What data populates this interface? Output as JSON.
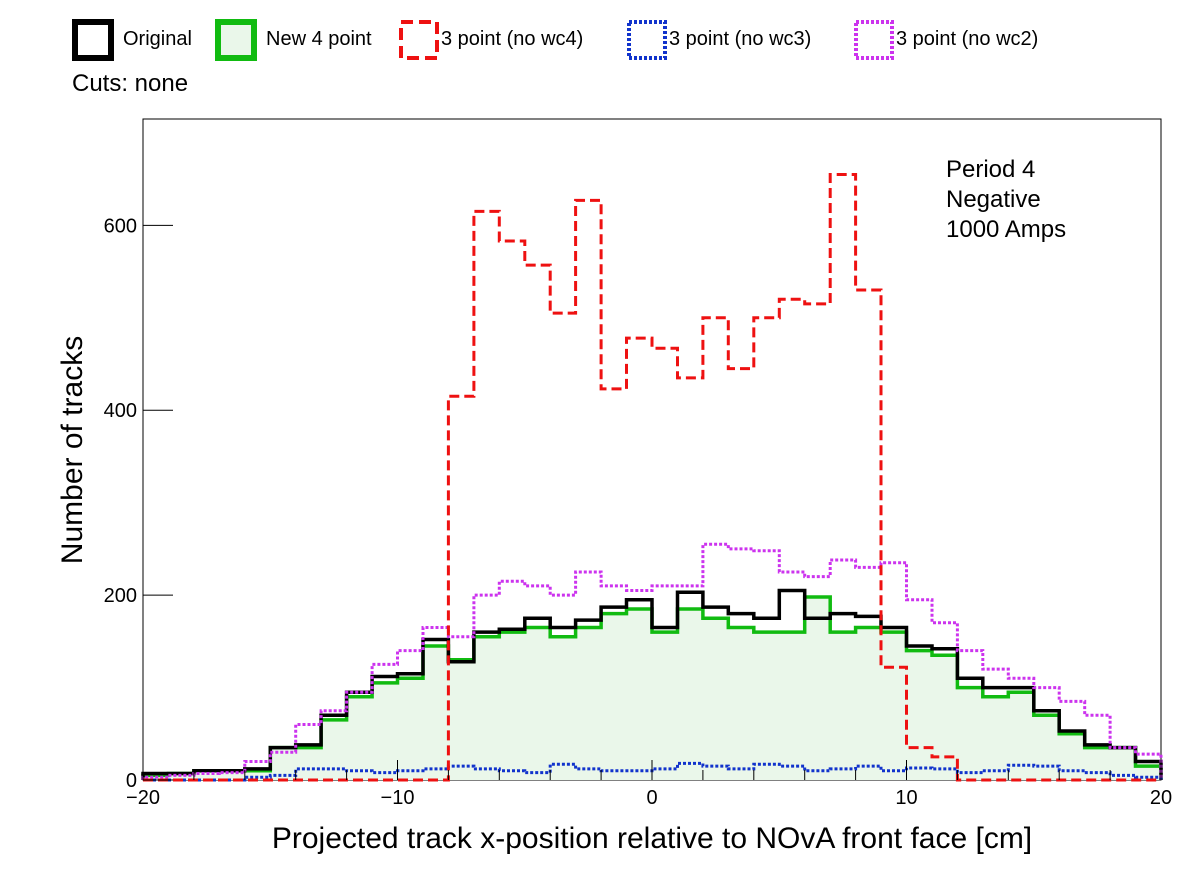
{
  "legend_items": [
    {
      "label": "Original",
      "color": "#000000",
      "style": "solid-thick",
      "fill": "none"
    },
    {
      "label": "New 4 point",
      "color": "#11bb11",
      "style": "solid-thick",
      "fill": "#eaf7ea"
    },
    {
      "label": "3 point (no wc4)",
      "color": "#ee1111",
      "style": "dashed",
      "fill": "none"
    },
    {
      "label": "3 point (no wc3)",
      "color": "#1133cc",
      "style": "dotted",
      "fill": "none"
    },
    {
      "label": "3 point (no wc2)",
      "color": "#cc33ee",
      "style": "dotted",
      "fill": "none"
    }
  ],
  "cuts_text": "Cuts: none",
  "annotation_lines": [
    "Period 4",
    "Negative",
    "1000 Amps"
  ],
  "chart_data": {
    "type": "histogram",
    "xlabel": "Projected track x-position relative to NOvA front face [cm]",
    "ylabel": "Number of tracks",
    "xlim": [
      -20,
      20
    ],
    "ylim": [
      0,
      715
    ],
    "x_ticks": [
      -20,
      -10,
      0,
      10,
      20
    ],
    "x_tick_labels": [
      "−20",
      "−10",
      "0",
      "10",
      "20"
    ],
    "y_ticks": [
      0,
      200,
      400,
      600
    ],
    "y_tick_labels": [
      "0",
      "200",
      "400",
      "600"
    ],
    "bin_edges": [
      -20,
      -19,
      -18,
      -17,
      -16,
      -15,
      -14,
      -13,
      -12,
      -11,
      -10,
      -9,
      -8,
      -7,
      -6,
      -5,
      -4,
      -3,
      -2,
      -1,
      0,
      1,
      2,
      3,
      4,
      5,
      6,
      7,
      8,
      9,
      10,
      11,
      12,
      13,
      14,
      15,
      16,
      17,
      18,
      19,
      20
    ],
    "series": [
      {
        "name": "New 4 point",
        "color": "#11bb11",
        "style": "solid",
        "fill": "#eaf7ea",
        "values": [
          5,
          7,
          10,
          10,
          10,
          35,
          35,
          65,
          90,
          105,
          110,
          145,
          130,
          155,
          160,
          165,
          155,
          165,
          180,
          185,
          160,
          185,
          175,
          165,
          160,
          160,
          198,
          160,
          165,
          160,
          140,
          135,
          100,
          90,
          95,
          70,
          50,
          35,
          35,
          15
        ]
      },
      {
        "name": "Original",
        "color": "#000000",
        "style": "solid",
        "fill": "none",
        "values": [
          7,
          7,
          10,
          10,
          12,
          35,
          38,
          70,
          95,
          112,
          115,
          152,
          128,
          160,
          163,
          175,
          165,
          173,
          187,
          195,
          165,
          203,
          187,
          180,
          175,
          205,
          175,
          180,
          177,
          165,
          145,
          142,
          110,
          100,
          100,
          75,
          53,
          38,
          35,
          20
        ]
      },
      {
        "name": "3 point (no wc4)",
        "color": "#ee1111",
        "style": "dashed",
        "fill": "none",
        "values": [
          0,
          0,
          0,
          0,
          0,
          0,
          0,
          0,
          0,
          0,
          0,
          0,
          415,
          615,
          583,
          557,
          505,
          627,
          423,
          478,
          467,
          435,
          500,
          445,
          500,
          520,
          515,
          655,
          530,
          122,
          35,
          25,
          0,
          0,
          0,
          0,
          0,
          0,
          0,
          0
        ]
      },
      {
        "name": "3 point (no wc3)",
        "color": "#1133cc",
        "style": "dotted",
        "fill": "none",
        "values": [
          0,
          0,
          0,
          0,
          3,
          5,
          12,
          12,
          10,
          8,
          10,
          12,
          15,
          12,
          10,
          8,
          17,
          12,
          10,
          10,
          12,
          18,
          15,
          12,
          17,
          15,
          10,
          12,
          15,
          10,
          13,
          12,
          8,
          10,
          16,
          15,
          10,
          8,
          5,
          3
        ]
      },
      {
        "name": "3 point (no wc2)",
        "color": "#cc33ee",
        "style": "dotted",
        "fill": "none",
        "values": [
          3,
          5,
          7,
          8,
          20,
          30,
          60,
          75,
          95,
          125,
          140,
          165,
          155,
          200,
          215,
          210,
          200,
          225,
          210,
          205,
          210,
          210,
          255,
          250,
          248,
          225,
          220,
          238,
          230,
          235,
          195,
          170,
          140,
          120,
          110,
          100,
          85,
          70,
          35,
          28
        ]
      }
    ]
  }
}
